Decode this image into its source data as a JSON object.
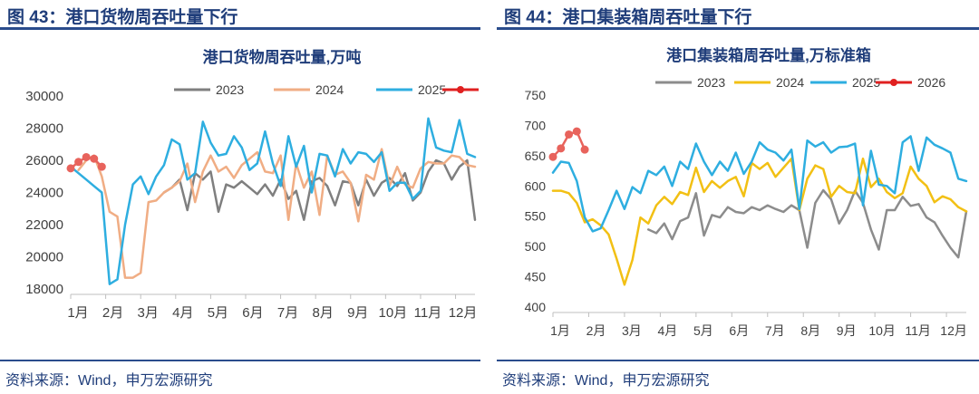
{
  "panels": [
    {
      "figure_title": "图 43：港口货物周吞吐量下行",
      "source": "资料来源：Wind，申万宏源研究",
      "chart_data": {
        "type": "line",
        "title": "港口货物周吞吐量,万吨",
        "xlabel": "",
        "ylabel": "",
        "x_range": [
          0,
          52
        ],
        "ylim": [
          18000,
          30000
        ],
        "yticks": [
          18000,
          20000,
          22000,
          24000,
          26000,
          28000,
          30000
        ],
        "ytick_labels": [
          "18000",
          "20000",
          "22000",
          "24000",
          "26000",
          "28000",
          "30000"
        ],
        "categories": [
          "1月",
          "2月",
          "3月",
          "4月",
          "5月",
          "6月",
          "7月",
          "8月",
          "9月",
          "10月",
          "11月",
          "12月"
        ],
        "category_positions": [
          0,
          4.5,
          9,
          13.5,
          18,
          22.5,
          27,
          31.5,
          36,
          40.5,
          45,
          49.5
        ],
        "legend_position": "top",
        "series": [
          {
            "name": "2023",
            "color": "#7f7f7f",
            "width": 2.5,
            "markers": false,
            "x": [
              12,
              13,
              14,
              15,
              16,
              17,
              18,
              19,
              20,
              21,
              22,
              23,
              24,
              25,
              26,
              27,
              28,
              29,
              30,
              31,
              32,
              33,
              34,
              35,
              36,
              37,
              38,
              39,
              40,
              41,
              42,
              43,
              44,
              45,
              46,
              47,
              48,
              49,
              50,
              51,
              52
            ],
            "values": [
              24000,
              24300,
              24800,
              22900,
              25200,
              24800,
              25300,
              22800,
              24500,
              24300,
              24700,
              24300,
              23900,
              24500,
              23800,
              24800,
              23600,
              24100,
              22300,
              24700,
              24900,
              24400,
              23200,
              24700,
              24600,
              23200,
              24800,
              23800,
              24600,
              24900,
              24400,
              25200,
              23500,
              24000,
              25300,
              26000,
              25800,
              24800,
              25600,
              26000,
              22300
            ]
          },
          {
            "name": "2024",
            "color": "#f0ad84",
            "width": 2.5,
            "markers": false,
            "x": [
              1,
              2,
              3,
              4,
              5,
              6,
              7,
              8,
              9,
              10,
              11,
              12,
              13,
              14,
              15,
              16,
              17,
              18,
              19,
              20,
              21,
              22,
              23,
              24,
              25,
              26,
              27,
              28,
              29,
              30,
              31,
              32,
              33,
              34,
              35,
              36,
              37,
              38,
              39,
              40,
              41,
              42,
              43,
              44,
              45,
              46,
              47,
              48,
              49,
              50,
              51,
              52
            ],
            "values": [
              25400,
              26000,
              26300,
              25000,
              22800,
              22500,
              18700,
              18700,
              19000,
              23400,
              23500,
              24000,
              24300,
              24700,
              25800,
              23400,
              25300,
              26300,
              25300,
              25600,
              24900,
              25700,
              26100,
              26500,
              25300,
              25200,
              26300,
              22300,
              25800,
              24300,
              25300,
              22600,
              26300,
              25100,
              25300,
              24600,
              22200,
              25100,
              24800,
              26700,
              24400,
              25600,
              24500,
              24300,
              25500,
              25900,
              25800,
              25800,
              26300,
              26200,
              25700,
              25600
            ]
          },
          {
            "name": "2025",
            "color": "#2eaee0",
            "width": 2.5,
            "markers": false,
            "x": [
              0,
              1,
              2,
              3,
              4,
              5,
              6,
              7,
              8,
              9,
              10,
              11,
              12,
              13,
              14,
              15,
              16,
              17,
              18,
              19,
              20,
              21,
              22,
              23,
              24,
              25,
              26,
              27,
              28,
              29,
              30,
              31,
              32,
              33,
              34,
              35,
              36,
              37,
              38,
              39,
              40,
              41,
              42,
              43,
              44,
              45,
              46,
              47,
              48,
              49,
              50,
              51,
              52
            ],
            "values": [
              25600,
              25200,
              24800,
              24400,
              24000,
              18300,
              18600,
              22000,
              24500,
              25000,
              23900,
              25000,
              25700,
              27300,
              27000,
              24800,
              25200,
              28400,
              27100,
              26300,
              26400,
              27500,
              26800,
              25400,
              25800,
              27800,
              25800,
              24400,
              27500,
              25600,
              26900,
              24000,
              26400,
              26300,
              25000,
              26700,
              25800,
              26500,
              26400,
              25900,
              26500,
              24100,
              24600,
              24600,
              23600,
              24100,
              28600,
              26800,
              26600,
              26500,
              28500,
              26400,
              26200
            ]
          },
          {
            "name": "2026",
            "color": "#e8635c",
            "legend_color": "#e02020",
            "width": 2.5,
            "markers": true,
            "x": [
              0,
              1,
              2,
              3,
              4
            ],
            "values": [
              25500,
              25900,
              26200,
              26100,
              25600
            ]
          }
        ]
      }
    },
    {
      "figure_title": "图 44：港口集装箱周吞吐量下行",
      "source": "资料来源：Wind，申万宏源研究",
      "chart_data": {
        "type": "line",
        "title": "港口集装箱周吞吐量,万标准箱",
        "xlabel": "",
        "ylabel": "",
        "x_range": [
          0,
          52
        ],
        "ylim": [
          400,
          750
        ],
        "yticks": [
          400,
          450,
          500,
          550,
          600,
          650,
          700,
          750
        ],
        "ytick_labels": [
          "400",
          "450",
          "500",
          "550",
          "600",
          "650",
          "700",
          "750"
        ],
        "categories": [
          "1月",
          "2月",
          "3月",
          "4月",
          "5月",
          "6月",
          "7月",
          "8月",
          "9月",
          "10月",
          "11月",
          "12月"
        ],
        "category_positions": [
          0,
          4.5,
          9,
          13.5,
          18,
          22.5,
          27,
          31.5,
          36,
          40.5,
          45,
          49.5
        ],
        "legend_position": "top",
        "series": [
          {
            "name": "2023",
            "color": "#8c8c8c",
            "width": 2.5,
            "markers": false,
            "x": [
              12,
              13,
              14,
              15,
              16,
              17,
              18,
              19,
              20,
              21,
              22,
              23,
              24,
              25,
              26,
              27,
              28,
              29,
              30,
              31,
              32,
              33,
              34,
              35,
              36,
              37,
              38,
              39,
              40,
              41,
              42,
              43,
              44,
              45,
              46,
              47,
              48,
              49,
              50,
              51,
              52
            ],
            "values": [
              528,
              522,
              538,
              512,
              542,
              548,
              588,
              518,
              552,
              548,
              565,
              557,
              555,
              565,
              560,
              568,
              562,
              557,
              568,
              560,
              498,
              572,
              593,
              578,
              538,
              560,
              592,
              572,
              528,
              495,
              560,
              560,
              582,
              567,
              570,
              548,
              540,
              518,
              498,
              482,
              558
            ]
          },
          {
            "name": "2024",
            "color": "#f2c014",
            "width": 2.5,
            "markers": false,
            "x": [
              0,
              1,
              2,
              3,
              4,
              5,
              6,
              7,
              8,
              9,
              10,
              11,
              12,
              13,
              14,
              15,
              16,
              17,
              18,
              19,
              20,
              21,
              22,
              23,
              24,
              25,
              26,
              27,
              28,
              29,
              30,
              31,
              32,
              33,
              34,
              35,
              36,
              37,
              38,
              39,
              40,
              41,
              42,
              43,
              44,
              45,
              46,
              47,
              48,
              49,
              50,
              51,
              52
            ],
            "values": [
              592,
              592,
              588,
              572,
              540,
              545,
              535,
              520,
              480,
              437,
              478,
              548,
              538,
              568,
              582,
              570,
              590,
              585,
              630,
              590,
              608,
              597,
              608,
              615,
              583,
              638,
              628,
              638,
              615,
              630,
              645,
              560,
              612,
              634,
              628,
              582,
              600,
              590,
              588,
              645,
              598,
              612,
              590,
              580,
              588,
              632,
              612,
              600,
              573,
              583,
              578,
              565,
              558
            ]
          },
          {
            "name": "2025",
            "color": "#2eaee0",
            "width": 2.5,
            "markers": false,
            "x": [
              0,
              1,
              2,
              3,
              4,
              5,
              6,
              7,
              8,
              9,
              10,
              11,
              12,
              13,
              14,
              15,
              16,
              17,
              18,
              19,
              20,
              21,
              22,
              23,
              24,
              25,
              26,
              27,
              28,
              29,
              30,
              31,
              32,
              33,
              34,
              35,
              36,
              37,
              38,
              39,
              40,
              41,
              42,
              43,
              44,
              45,
              46,
              47,
              48,
              49,
              50,
              51,
              52
            ],
            "values": [
              622,
              640,
              638,
              608,
              548,
              525,
              530,
              560,
              592,
              562,
              598,
              588,
              625,
              618,
              632,
              600,
              640,
              628,
              670,
              640,
              618,
              640,
              625,
              655,
              620,
              640,
              672,
              660,
              655,
              642,
              660,
              562,
              675,
              665,
              672,
              655,
              664,
              665,
              670,
              568,
              658,
              602,
              600,
              588,
              672,
              682,
              625,
              680,
              668,
              662,
              655,
              612,
              608
            ]
          },
          {
            "name": "2026",
            "color": "#e8635c",
            "legend_color": "#e02020",
            "width": 2.5,
            "markers": true,
            "x": [
              0,
              1,
              2,
              3,
              4
            ],
            "values": [
              648,
              662,
              685,
              690,
              660
            ]
          }
        ]
      }
    }
  ]
}
